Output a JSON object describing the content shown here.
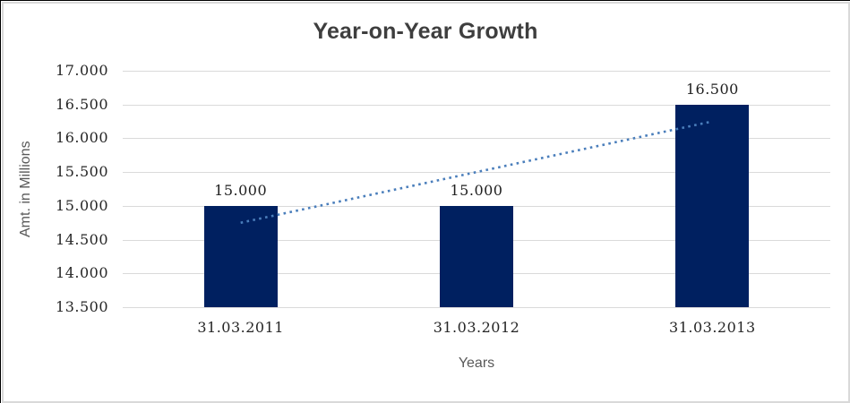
{
  "chart_data": {
    "type": "bar",
    "title": "Year-on-Year Growth",
    "xlabel": "Years",
    "ylabel": "Amt. in Millions",
    "categories": [
      "31.03.2011",
      "31.03.2012",
      "31.03.2013"
    ],
    "values": [
      15.0,
      15.0,
      16.5
    ],
    "value_labels": [
      "15.000",
      "15.000",
      "16.500"
    ],
    "ylim": [
      13.5,
      17.0
    ],
    "ytick_step": 0.5,
    "ytick_labels": [
      "13.500",
      "14.000",
      "14.500",
      "15.000",
      "15.500",
      "16.000",
      "16.500",
      "17.000"
    ],
    "grid": true,
    "legend": "none",
    "trendline": {
      "type": "linear",
      "style": "dotted",
      "y_start": 14.75,
      "y_end": 16.25
    },
    "colors": {
      "bar": "#002060",
      "trendline": "#4A7EBB",
      "gridline": "#DADADA",
      "title_text": "#3E3E3E",
      "axis_title_text": "#595959",
      "tick_text": "#262626"
    }
  }
}
